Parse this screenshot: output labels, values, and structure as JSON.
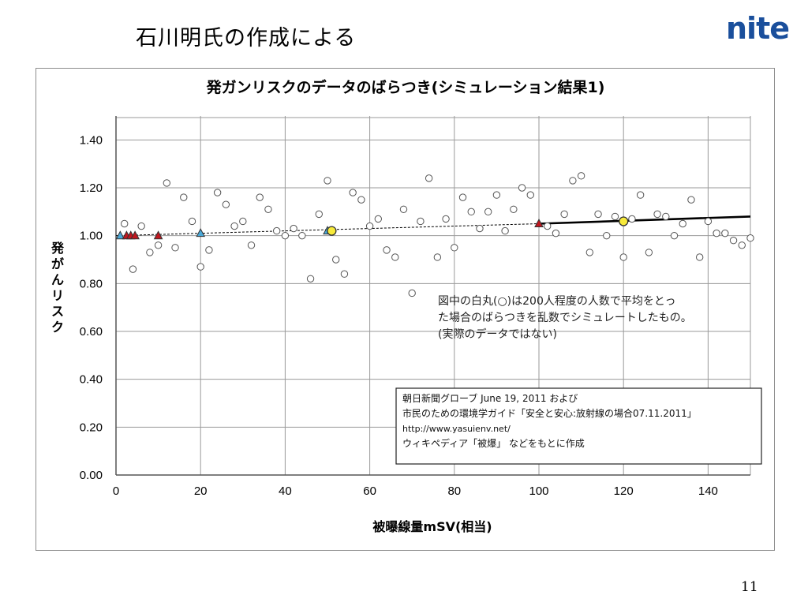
{
  "slide": {
    "title": "石川明氏の作成による",
    "logo": "nite",
    "page_number": "11"
  },
  "chart_data": {
    "type": "scatter",
    "title": "発ガンリスクのデータのばらつき(シミュレーション結果1)",
    "xlabel": "被曝線量mSV(相当)",
    "ylabel": "発がんリスク",
    "xlim": [
      0,
      150
    ],
    "ylim": [
      0,
      1.5
    ],
    "x_ticks": [
      "0",
      "20",
      "40",
      "60",
      "80",
      "100",
      "120",
      "140"
    ],
    "y_ticks": [
      "0.00",
      "0.20",
      "0.40",
      "0.60",
      "0.80",
      "1.00",
      "1.20",
      "1.40"
    ],
    "grid": true,
    "series": [
      {
        "marker": "open-circle",
        "points": [
          [
            2,
            1.05
          ],
          [
            4,
            0.86
          ],
          [
            6,
            1.04
          ],
          [
            8,
            0.93
          ],
          [
            10,
            0.96
          ],
          [
            12,
            1.22
          ],
          [
            14,
            0.95
          ],
          [
            16,
            1.16
          ],
          [
            18,
            1.06
          ],
          [
            20,
            0.87
          ],
          [
            22,
            0.94
          ],
          [
            24,
            1.18
          ],
          [
            26,
            1.13
          ],
          [
            28,
            1.04
          ],
          [
            30,
            1.06
          ],
          [
            32,
            0.96
          ],
          [
            34,
            1.16
          ],
          [
            36,
            1.11
          ],
          [
            38,
            1.02
          ],
          [
            40,
            1.0
          ],
          [
            42,
            1.03
          ],
          [
            44,
            1.0
          ],
          [
            46,
            0.82
          ],
          [
            48,
            1.09
          ],
          [
            50,
            1.23
          ],
          [
            52,
            0.9
          ],
          [
            54,
            0.84
          ],
          [
            56,
            1.18
          ],
          [
            58,
            1.15
          ],
          [
            60,
            1.04
          ],
          [
            62,
            1.07
          ],
          [
            64,
            0.94
          ],
          [
            66,
            0.91
          ],
          [
            68,
            1.11
          ],
          [
            70,
            0.76
          ],
          [
            72,
            1.06
          ],
          [
            74,
            1.24
          ],
          [
            76,
            0.91
          ],
          [
            78,
            1.07
          ],
          [
            80,
            0.95
          ],
          [
            82,
            1.16
          ],
          [
            84,
            1.1
          ],
          [
            86,
            1.03
          ],
          [
            88,
            1.1
          ],
          [
            90,
            1.17
          ],
          [
            92,
            1.02
          ],
          [
            94,
            1.11
          ],
          [
            96,
            1.2
          ],
          [
            98,
            1.17
          ],
          [
            102,
            1.04
          ],
          [
            104,
            1.01
          ],
          [
            106,
            1.09
          ],
          [
            108,
            1.23
          ],
          [
            110,
            1.25
          ],
          [
            112,
            0.93
          ],
          [
            114,
            1.09
          ],
          [
            116,
            1.0
          ],
          [
            118,
            1.08
          ],
          [
            120,
            0.91
          ],
          [
            122,
            1.07
          ],
          [
            124,
            1.17
          ],
          [
            126,
            0.93
          ],
          [
            128,
            1.09
          ],
          [
            130,
            1.08
          ],
          [
            132,
            1.0
          ],
          [
            134,
            1.05
          ],
          [
            136,
            1.15
          ],
          [
            138,
            0.91
          ],
          [
            140,
            1.06
          ],
          [
            142,
            1.01
          ],
          [
            144,
            1.01
          ],
          [
            146,
            0.98
          ],
          [
            148,
            0.96
          ],
          [
            150,
            0.99
          ]
        ]
      },
      {
        "marker": "blue-triangle",
        "color": "#4aa8d8",
        "points": [
          [
            1,
            1.0
          ],
          [
            20,
            1.01
          ],
          [
            50,
            1.02
          ]
        ]
      },
      {
        "marker": "red-triangle",
        "color": "#c0171f",
        "points": [
          [
            2.5,
            1.0
          ],
          [
            3.5,
            1.0
          ],
          [
            4.5,
            1.0
          ],
          [
            10,
            1.0
          ],
          [
            100,
            1.05
          ]
        ]
      },
      {
        "marker": "yellow-circle",
        "color": "#f7ea3a",
        "points": [
          [
            51,
            1.02
          ],
          [
            120,
            1.06
          ]
        ]
      }
    ],
    "lines": [
      {
        "style": "dotted",
        "x": [
          0,
          100
        ],
        "y": [
          1.0,
          1.05
        ]
      },
      {
        "style": "solid",
        "x": [
          100,
          150
        ],
        "y": [
          1.05,
          1.08
        ]
      }
    ],
    "annotations": {
      "note_lines": [
        "図中の白丸(○)は200人程度の人数で平均をとっ",
        "た場合のばらつきを乱数でシミュレートしたもの。",
        "(実際のデータではない)"
      ],
      "source_lines": [
        "朝日新聞グローブ June 19, 2011 および",
        "市民のための環境学ガイド「安全と安心:放射線の場合07.11.2011」",
        "http://www.yasuienv.net/",
        "ウィキペディア「被爆」 などをもとに作成"
      ]
    }
  }
}
